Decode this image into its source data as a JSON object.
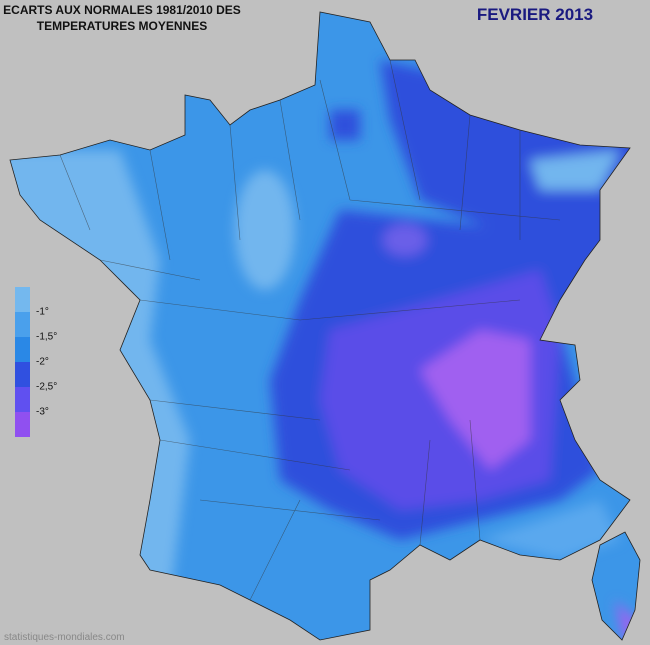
{
  "header": {
    "title_lines": [
      "ECARTS AUX NORMALES 1981/2010 DES",
      "TEMPERATURES MOYENNES"
    ],
    "period": "FEVRIER 2013"
  },
  "legend": {
    "labels": [
      "-1°",
      "-1,5°",
      "-2°",
      "-2,5°",
      "-3°"
    ]
  },
  "footer": {
    "source": "statistiques-mondiales.com"
  }
}
